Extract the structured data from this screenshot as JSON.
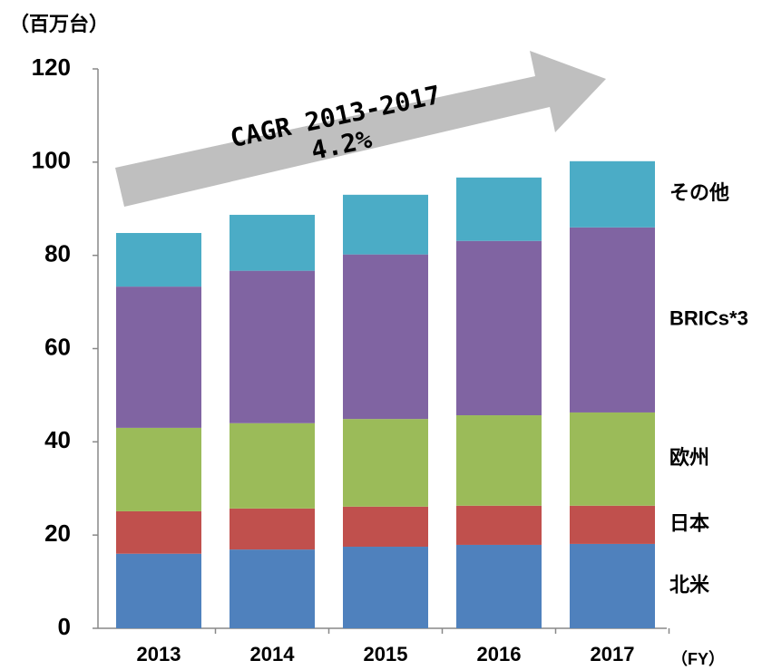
{
  "chart_data": {
    "type": "stacked_bar",
    "y_label": "（百万台）",
    "x_label": "（FY）",
    "annotations": [
      "CAGR 2013-2017",
      "4.2%"
    ],
    "categories": [
      "2013",
      "2014",
      "2015",
      "2016",
      "2017"
    ],
    "series": [
      {
        "name": "北米",
        "color": "#4f81bd",
        "values": [
          16.0,
          16.9,
          17.5,
          17.9,
          18.1
        ]
      },
      {
        "name": "日本",
        "color": "#c0504d",
        "values": [
          9.1,
          8.8,
          8.6,
          8.4,
          8.2
        ]
      },
      {
        "name": "欧州",
        "color": "#9bbb59",
        "values": [
          17.9,
          18.3,
          18.8,
          19.4,
          20.0
        ]
      },
      {
        "name": "BRICs*3",
        "color": "#8064a2",
        "values": [
          30.3,
          32.7,
          35.3,
          37.4,
          39.7
        ]
      },
      {
        "name": "その他",
        "color": "#4bacc6",
        "values": [
          11.5,
          12.0,
          12.8,
          13.6,
          14.2
        ]
      }
    ],
    "ylim": [
      0,
      120
    ],
    "yticks": [
      0,
      20,
      40,
      60,
      80,
      100,
      120
    ]
  }
}
